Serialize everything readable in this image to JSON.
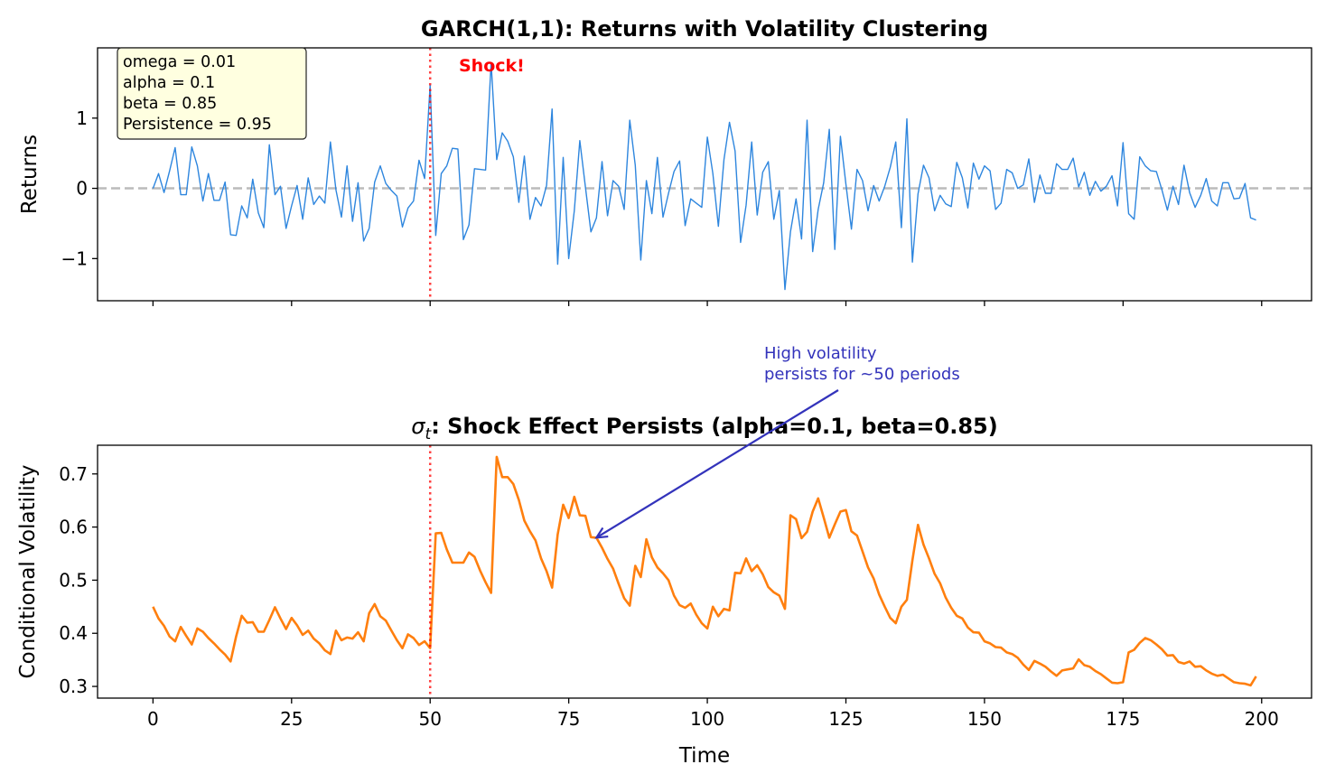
{
  "chart_data": [
    {
      "type": "line",
      "title": "GARCH(1,1): Returns with Volatility Clustering",
      "xlabel": "",
      "ylabel": "Returns",
      "xlim": [
        -10,
        209
      ],
      "ylim": [
        -1.6,
        2.0
      ],
      "xticks": [
        0,
        25,
        50,
        75,
        100,
        125,
        150,
        175,
        200
      ],
      "yticks": [
        -1,
        0,
        1
      ],
      "ytick_labels": [
        "−1",
        "0",
        "1"
      ],
      "grid": false,
      "line_color": "#2e86de",
      "zero_line": {
        "y": 0,
        "color": "#bbbbbb",
        "style": "dashed"
      },
      "shock_line": {
        "x": 50,
        "color": "#ff0000",
        "style": "dotted"
      },
      "shock_label": "Shock!",
      "params_box": [
        "omega = 0.01",
        "alpha = 0.1",
        "beta = 0.85",
        "Persistence = 0.95"
      ],
      "series": [
        {
          "x_start": 0,
          "values": [
            0,
            0.21,
            -0.06,
            0.25,
            0.58,
            -0.09,
            -0.09,
            0.59,
            0.32,
            -0.18,
            0.21,
            -0.17,
            -0.17,
            0.09,
            -0.66,
            -0.67,
            -0.25,
            -0.42,
            0.13,
            -0.35,
            -0.56,
            0.62,
            -0.09,
            0.03,
            -0.57,
            -0.25,
            0.04,
            -0.44,
            0.15,
            -0.23,
            -0.11,
            -0.21,
            0.66,
            -0.02,
            -0.41,
            0.32,
            -0.47,
            0.08,
            -0.75,
            -0.57,
            0.09,
            0.32,
            0.07,
            -0.03,
            -0.11,
            -0.55,
            -0.28,
            -0.18,
            0.4,
            0.14,
            1.47,
            -0.67,
            0.21,
            0.32,
            0.57,
            0.56,
            -0.73,
            -0.52,
            0.28,
            0.27,
            0.26,
            1.79,
            0.41,
            0.79,
            0.67,
            0.45,
            -0.2,
            0.46,
            -0.44,
            -0.13,
            -0.25,
            0.04,
            1.13,
            -1.08,
            0.44,
            -1.0,
            -0.32,
            0.68,
            0.02,
            -0.62,
            -0.42,
            0.38,
            -0.39,
            0.11,
            0.03,
            -0.3,
            0.97,
            0.33,
            -1.02,
            0.11,
            -0.36,
            0.44,
            -0.41,
            -0.07,
            0.24,
            0.39,
            -0.53,
            -0.15,
            -0.21,
            -0.27,
            0.73,
            0.21,
            -0.54,
            0.41,
            0.94,
            0.53,
            -0.77,
            -0.24,
            0.66,
            -0.38,
            0.23,
            0.38,
            -0.44,
            -0.03,
            -1.44,
            -0.62,
            -0.15,
            -0.72,
            0.97,
            -0.9,
            -0.3,
            0.08,
            0.84,
            -0.87,
            0.74,
            0.06,
            -0.58,
            0.27,
            0.11,
            -0.32,
            0.04,
            -0.18,
            0.03,
            0.3,
            0.66,
            -0.56,
            0.99,
            -1.05,
            -0.08,
            0.33,
            0.15,
            -0.32,
            -0.1,
            -0.22,
            -0.26,
            0.37,
            0.15,
            -0.28,
            0.36,
            0.13,
            0.32,
            0.25,
            -0.3,
            -0.21,
            0.27,
            0.22,
            0,
            0.05,
            0.42,
            -0.2,
            0.19,
            -0.07,
            -0.07,
            0.35,
            0.27,
            0.27,
            0.43,
            0.02,
            0.23,
            -0.1,
            0.1,
            -0.04,
            0.03,
            0.18,
            -0.25,
            0.65,
            -0.36,
            -0.44,
            0.45,
            0.32,
            0.25,
            0.24,
            -0.02,
            -0.31,
            0.03,
            -0.23,
            0.33,
            -0.06,
            -0.27,
            -0.1,
            0.14,
            -0.18,
            -0.25,
            0.08,
            0.08,
            -0.15,
            -0.14,
            0.07,
            -0.42,
            -0.45
          ]
        }
      ]
    },
    {
      "type": "line",
      "title_math": "σ",
      "title_sub": "t",
      "title": ": Shock Effect Persists (alpha=0.1, beta=0.85)",
      "xlabel": "Time",
      "ylabel": "Conditional Volatility",
      "xlim": [
        -10,
        209
      ],
      "ylim": [
        0.278,
        0.754
      ],
      "xticks": [
        0,
        25,
        50,
        75,
        100,
        125,
        150,
        175,
        200
      ],
      "yticks": [
        0.3,
        0.4,
        0.5,
        0.6,
        0.7
      ],
      "ytick_labels": [
        "0.3",
        "0.4",
        "0.5",
        "0.6",
        "0.7"
      ],
      "grid": false,
      "line_color": "#ff7f0e",
      "shock_line": {
        "x": 50,
        "color": "#ff0000",
        "style": "dotted"
      },
      "annotation": {
        "text": [
          "High volatility",
          "persists for ~50 periods"
        ],
        "xy": [
          80,
          0.58
        ],
        "color": "#3333bb"
      },
      "series": [
        {
          "x_start": 0,
          "values": [
            0.45,
            0.428,
            0.414,
            0.394,
            0.385,
            0.412,
            0.395,
            0.379,
            0.409,
            0.403,
            0.391,
            0.381,
            0.37,
            0.36,
            0.347,
            0.394,
            0.433,
            0.42,
            0.421,
            0.403,
            0.403,
            0.425,
            0.449,
            0.428,
            0.408,
            0.429,
            0.415,
            0.397,
            0.405,
            0.39,
            0.381,
            0.368,
            0.361,
            0.405,
            0.387,
            0.392,
            0.39,
            0.402,
            0.385,
            0.438,
            0.455,
            0.432,
            0.424,
            0.405,
            0.387,
            0.372,
            0.398,
            0.391,
            0.378,
            0.385,
            0.372,
            0.588,
            0.589,
            0.558,
            0.533,
            0.533,
            0.533,
            0.552,
            0.544,
            0.518,
            0.496,
            0.476,
            0.732,
            0.694,
            0.694,
            0.681,
            0.651,
            0.612,
            0.592,
            0.575,
            0.541,
            0.517,
            0.486,
            0.586,
            0.642,
            0.617,
            0.657,
            0.622,
            0.621,
            0.581,
            0.58,
            0.561,
            0.54,
            0.522,
            0.493,
            0.466,
            0.452,
            0.527,
            0.506,
            0.577,
            0.543,
            0.524,
            0.513,
            0.5,
            0.471,
            0.453,
            0.448,
            0.456,
            0.435,
            0.419,
            0.409,
            0.45,
            0.432,
            0.446,
            0.443,
            0.514,
            0.513,
            0.541,
            0.517,
            0.528,
            0.511,
            0.487,
            0.477,
            0.471,
            0.446,
            0.622,
            0.615,
            0.579,
            0.591,
            0.629,
            0.654,
            0.618,
            0.58,
            0.605,
            0.629,
            0.632,
            0.592,
            0.584,
            0.554,
            0.524,
            0.503,
            0.473,
            0.45,
            0.429,
            0.419,
            0.45,
            0.463,
            0.537,
            0.604,
            0.567,
            0.541,
            0.512,
            0.494,
            0.467,
            0.448,
            0.433,
            0.428,
            0.411,
            0.402,
            0.401,
            0.385,
            0.381,
            0.374,
            0.373,
            0.364,
            0.361,
            0.354,
            0.341,
            0.331,
            0.348,
            0.343,
            0.337,
            0.328,
            0.32,
            0.33,
            0.332,
            0.334,
            0.351,
            0.34,
            0.337,
            0.329,
            0.323,
            0.315,
            0.307,
            0.306,
            0.308,
            0.364,
            0.369,
            0.382,
            0.391,
            0.387,
            0.379,
            0.37,
            0.358,
            0.359,
            0.346,
            0.343,
            0.347,
            0.337,
            0.338,
            0.33,
            0.324,
            0.32,
            0.322,
            0.315,
            0.308,
            0.306,
            0.305,
            0.302,
            0.319
          ]
        }
      ]
    }
  ]
}
